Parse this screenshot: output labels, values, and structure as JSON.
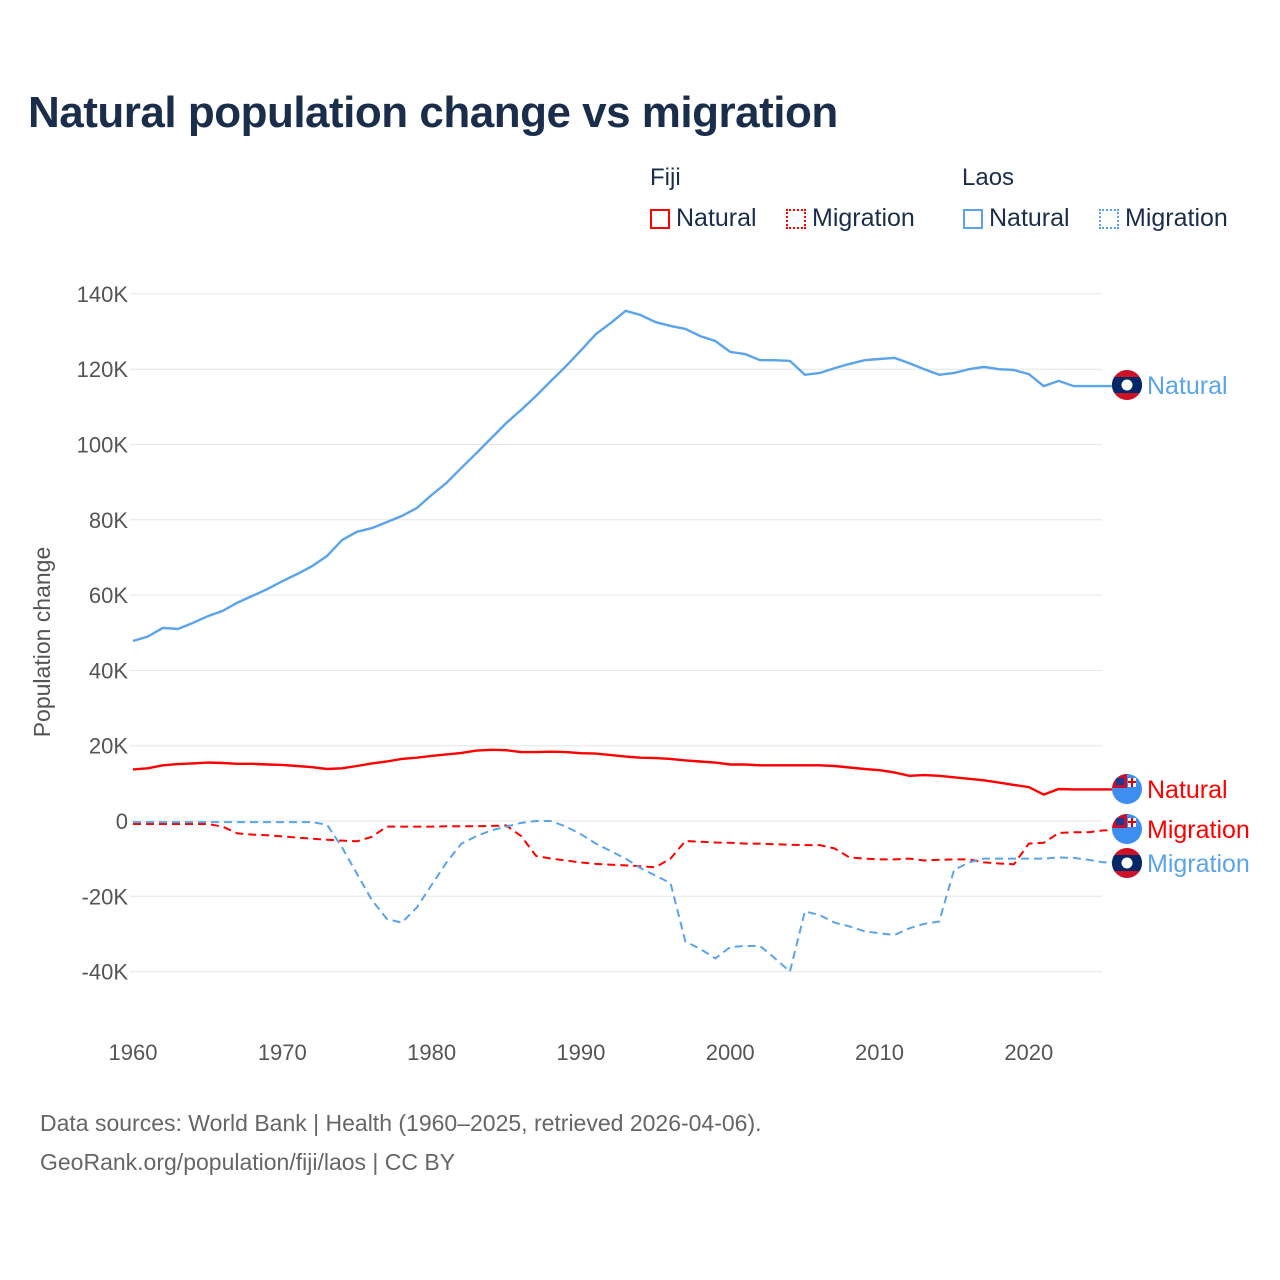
{
  "title": "Natural population change vs migration",
  "legend": {
    "groups": [
      {
        "name": "Fiji",
        "items": [
          "Natural",
          "Migration"
        ],
        "color": "#ff0000"
      },
      {
        "name": "Laos",
        "items": [
          "Natural",
          "Migration"
        ],
        "color": "#5ba4ea"
      }
    ]
  },
  "footer": {
    "line1": "Data sources: World Bank | Health (1960–2025, retrieved 2026-04-06).",
    "line2": "GeoRank.org/population/fiji/laos | CC BY"
  },
  "chart_data": {
    "type": "line",
    "title": "Natural population change vs migration",
    "xlabel": "",
    "ylabel": "Population change",
    "xlim": [
      1960,
      2025
    ],
    "ylim": [
      -50000,
      145000
    ],
    "x_ticks": [
      "1960",
      "1970",
      "1980",
      "1990",
      "2000",
      "2010",
      "2020"
    ],
    "x_tick_values": [
      1960,
      1970,
      1980,
      1990,
      2000,
      2010,
      2020
    ],
    "y_ticks": [
      "-40K",
      "-20K",
      "0",
      "20K",
      "40K",
      "60K",
      "80K",
      "100K",
      "120K",
      "140K"
    ],
    "y_tick_values": [
      -40000,
      -20000,
      0,
      20000,
      40000,
      60000,
      80000,
      100000,
      120000,
      140000
    ],
    "grid": true,
    "series": [
      {
        "name": "Laos Natural",
        "end_label": "Natural",
        "country": "Laos",
        "color": "#5ba4ea",
        "dash": false,
        "start": 1960,
        "values": [
          47.8,
          49,
          51.3,
          51,
          52.6,
          54.4,
          55.8,
          58,
          59.8,
          61.6,
          63.7,
          65.6,
          67.7,
          70.4,
          74.6,
          76.8,
          77.8,
          79.4,
          81,
          83.1,
          86.6,
          89.8,
          93.8,
          97.7,
          101.7,
          105.7,
          109.2,
          112.9,
          116.9,
          120.8,
          125,
          129.3,
          132.3,
          135.5,
          134.4,
          132.5,
          131.5,
          130.7,
          128.8,
          127.5,
          124.6,
          124,
          122.4,
          122.4,
          122.2,
          118.5,
          119,
          120.3,
          121.4,
          122.4,
          122.7,
          123,
          121.6,
          120,
          118.5,
          119,
          120,
          120.6,
          120,
          119.8,
          118.7,
          115.5,
          116.9,
          115.5,
          115.5,
          115.5
        ]
      },
      {
        "name": "Fiji Natural",
        "end_label": "Natural",
        "country": "Fiji",
        "color": "#ff0000",
        "dash": false,
        "start": 1960,
        "values": [
          13.7,
          14,
          14.8,
          15.1,
          15.3,
          15.5,
          15.4,
          15.2,
          15.2,
          15,
          14.9,
          14.6,
          14.3,
          13.8,
          14,
          14.6,
          15.3,
          15.8,
          16.5,
          16.8,
          17.3,
          17.7,
          18.1,
          18.7,
          18.9,
          18.8,
          18.3,
          18.3,
          18.4,
          18.3,
          18,
          17.9,
          17.5,
          17.1,
          16.8,
          16.7,
          16.5,
          16.1,
          15.8,
          15.5,
          15,
          15,
          14.8,
          14.8,
          14.8,
          14.8,
          14.8,
          14.6,
          14.2,
          13.8,
          13.5,
          12.9,
          12,
          12.2,
          12,
          11.6,
          11.2,
          10.8,
          10.2,
          9.6,
          9,
          7,
          8.5,
          8.4,
          8.4,
          8.4
        ]
      },
      {
        "name": "Fiji Migration",
        "end_label": "Migration",
        "country": "Fiji",
        "color": "#ff0000",
        "dash": true,
        "start": 1960,
        "values": [
          -0.8,
          -0.8,
          -0.8,
          -0.8,
          -0.8,
          -0.8,
          -1.5,
          -3.3,
          -3.6,
          -3.8,
          -4.1,
          -4.4,
          -4.7,
          -5,
          -5.2,
          -5.4,
          -4.2,
          -1.5,
          -1.5,
          -1.5,
          -1.5,
          -1.4,
          -1.4,
          -1.4,
          -1.3,
          -1.2,
          -4,
          -9.3,
          -10,
          -10.5,
          -11,
          -11.4,
          -11.6,
          -11.8,
          -12,
          -12.3,
          -10,
          -5.3,
          -5.5,
          -5.7,
          -5.8,
          -6,
          -6,
          -6.2,
          -6.3,
          -6.4,
          -6.4,
          -7.3,
          -9.7,
          -10,
          -10.2,
          -10.2,
          -10,
          -10.5,
          -10.3,
          -10.2,
          -10.2,
          -11,
          -11.3,
          -11.5,
          -6,
          -5.8,
          -3.2,
          -3,
          -3,
          -2.5
        ]
      },
      {
        "name": "Laos Migration",
        "end_label": "Migration",
        "country": "Laos",
        "color": "#5ba4ea",
        "dash": true,
        "start": 1960,
        "values": [
          -0.3,
          -0.3,
          -0.3,
          -0.3,
          -0.3,
          -0.3,
          -0.3,
          -0.3,
          -0.3,
          -0.3,
          -0.3,
          -0.3,
          -0.3,
          -1,
          -7,
          -14,
          -21,
          -26,
          -27,
          -23,
          -17,
          -11,
          -6,
          -4,
          -2.5,
          -1.5,
          -0.5,
          0,
          0,
          -1.5,
          -3.5,
          -6,
          -8,
          -10,
          -12.5,
          -14.5,
          -16.5,
          -32,
          -34,
          -36.5,
          -33.5,
          -33.2,
          -33.2,
          -36.5,
          -40,
          -24,
          -25,
          -27,
          -28,
          -29.3,
          -29.8,
          -30.3,
          -28.5,
          -27.3,
          -26.7,
          -13,
          -11,
          -10,
          -10,
          -10,
          -10,
          -10,
          -9.7,
          -9.8,
          -10.3,
          -11
        ]
      }
    ],
    "value_unit": "thousands"
  }
}
